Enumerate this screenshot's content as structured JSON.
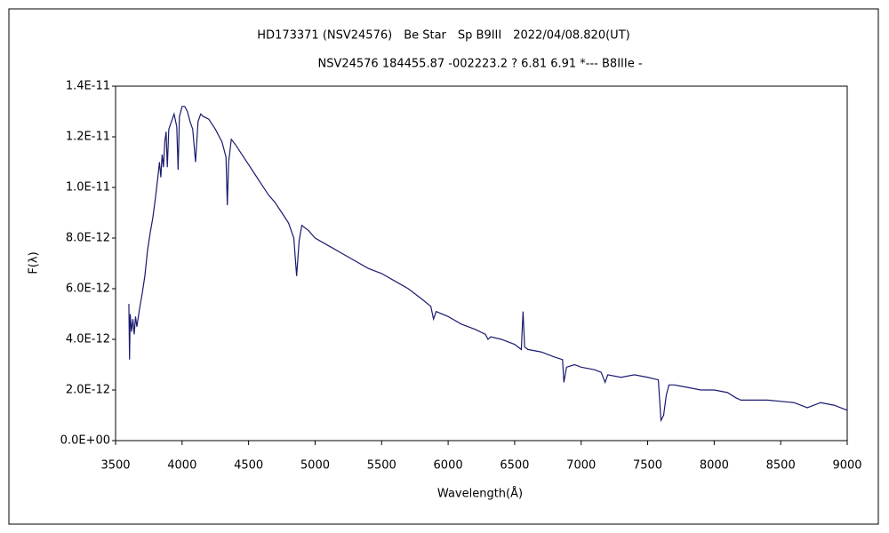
{
  "chart_data": {
    "type": "line",
    "title": "HD173371 (NSV24576)　Be Star　Sp B9III　2022/04/08.820(UT)",
    "subtitle": "NSV24576 184455.87 -002223.2 ? 6.81 6.91 *--- B8IIIe -",
    "x_label": "Wavelength(Å)",
    "y_label": "F(λ)",
    "x": [
      3600,
      3605,
      3610,
      3620,
      3630,
      3640,
      3650,
      3660,
      3680,
      3700,
      3720,
      3740,
      3760,
      3780,
      3800,
      3820,
      3830,
      3840,
      3850,
      3860,
      3870,
      3880,
      3889,
      3900,
      3920,
      3940,
      3960,
      3970,
      3980,
      4000,
      4020,
      4040,
      4060,
      4080,
      4101,
      4120,
      4140,
      4160,
      4200,
      4250,
      4300,
      4330,
      4340,
      4350,
      4370,
      4400,
      4450,
      4500,
      4550,
      4600,
      4650,
      4700,
      4750,
      4800,
      4840,
      4861,
      4880,
      4900,
      4950,
      5000,
      5100,
      5200,
      5300,
      5400,
      5500,
      5600,
      5700,
      5800,
      5870,
      5890,
      5910,
      6000,
      6100,
      6200,
      6280,
      6300,
      6320,
      6400,
      6500,
      6550,
      6563,
      6575,
      6600,
      6700,
      6800,
      6860,
      6870,
      6890,
      6950,
      7000,
      7100,
      7150,
      7180,
      7200,
      7300,
      7400,
      7500,
      7580,
      7600,
      7620,
      7640,
      7660,
      7700,
      7800,
      7900,
      8000,
      8100,
      8160,
      8200,
      8400,
      8600,
      8700,
      8800,
      8900,
      9000
    ],
    "series": [
      {
        "color": "#1a1a6e",
        "values": [
          5.4e-12,
          3.2e-12,
          5e-12,
          4.3e-12,
          4.8e-12,
          4.2e-12,
          4.9e-12,
          4.5e-12,
          5.2e-12,
          5.8e-12,
          6.5e-12,
          7.5e-12,
          8.2e-12,
          8.8e-12,
          9.6e-12,
          1.05e-11,
          1.1e-11,
          1.04e-11,
          1.13e-11,
          1.08e-11,
          1.18e-11,
          1.22e-11,
          1.08e-11,
          1.23e-11,
          1.26e-11,
          1.29e-11,
          1.24e-11,
          1.07e-11,
          1.28e-11,
          1.32e-11,
          1.32e-11,
          1.3e-11,
          1.26e-11,
          1.23e-11,
          1.1e-11,
          1.26e-11,
          1.29e-11,
          1.28e-11,
          1.27e-11,
          1.23e-11,
          1.18e-11,
          1.12e-11,
          9.3e-12,
          1.1e-11,
          1.19e-11,
          1.17e-11,
          1.13e-11,
          1.09e-11,
          1.05e-11,
          1.01e-11,
          9.7e-12,
          9.4e-12,
          9e-12,
          8.6e-12,
          8e-12,
          6.5e-12,
          7.9e-12,
          8.5e-12,
          8.3e-12,
          8e-12,
          7.7e-12,
          7.4e-12,
          7.1e-12,
          6.8e-12,
          6.6e-12,
          6.3e-12,
          6e-12,
          5.6e-12,
          5.3e-12,
          4.8e-12,
          5.1e-12,
          4.9e-12,
          4.6e-12,
          4.4e-12,
          4.2e-12,
          4e-12,
          4.1e-12,
          4e-12,
          3.8e-12,
          3.6e-12,
          5.1e-12,
          3.7e-12,
          3.6e-12,
          3.5e-12,
          3.3e-12,
          3.2e-12,
          2.3e-12,
          2.9e-12,
          3e-12,
          2.9e-12,
          2.8e-12,
          2.7e-12,
          2.3e-12,
          2.6e-12,
          2.5e-12,
          2.6e-12,
          2.5e-12,
          2.4e-12,
          8e-13,
          1e-12,
          1.8e-12,
          2.2e-12,
          2.2e-12,
          2.1e-12,
          2e-12,
          2e-12,
          1.9e-12,
          1.7e-12,
          1.6e-12,
          1.6e-12,
          1.5e-12,
          1.3e-12,
          1.5e-12,
          1.4e-12,
          1.2e-12
        ]
      }
    ],
    "xlim": [
      3500,
      9000
    ],
    "xticks": [
      3500,
      4000,
      4500,
      5000,
      5500,
      6000,
      6500,
      7000,
      7500,
      8000,
      8500,
      9000
    ],
    "ylim": [
      0,
      1.4e-11
    ],
    "yticks": [
      {
        "value": 0,
        "label": "0.0E+00"
      },
      {
        "value": 2e-12,
        "label": "2.0E-12"
      },
      {
        "value": 4e-12,
        "label": "4.0E-12"
      },
      {
        "value": 6e-12,
        "label": "6.0E-12"
      },
      {
        "value": 8e-12,
        "label": "8.0E-12"
      },
      {
        "value": 1e-11,
        "label": "1.0E-11"
      },
      {
        "value": 1.2e-11,
        "label": "1.2E-11"
      },
      {
        "value": 1.4e-11,
        "label": "1.4E-11"
      }
    ],
    "grid": false
  }
}
